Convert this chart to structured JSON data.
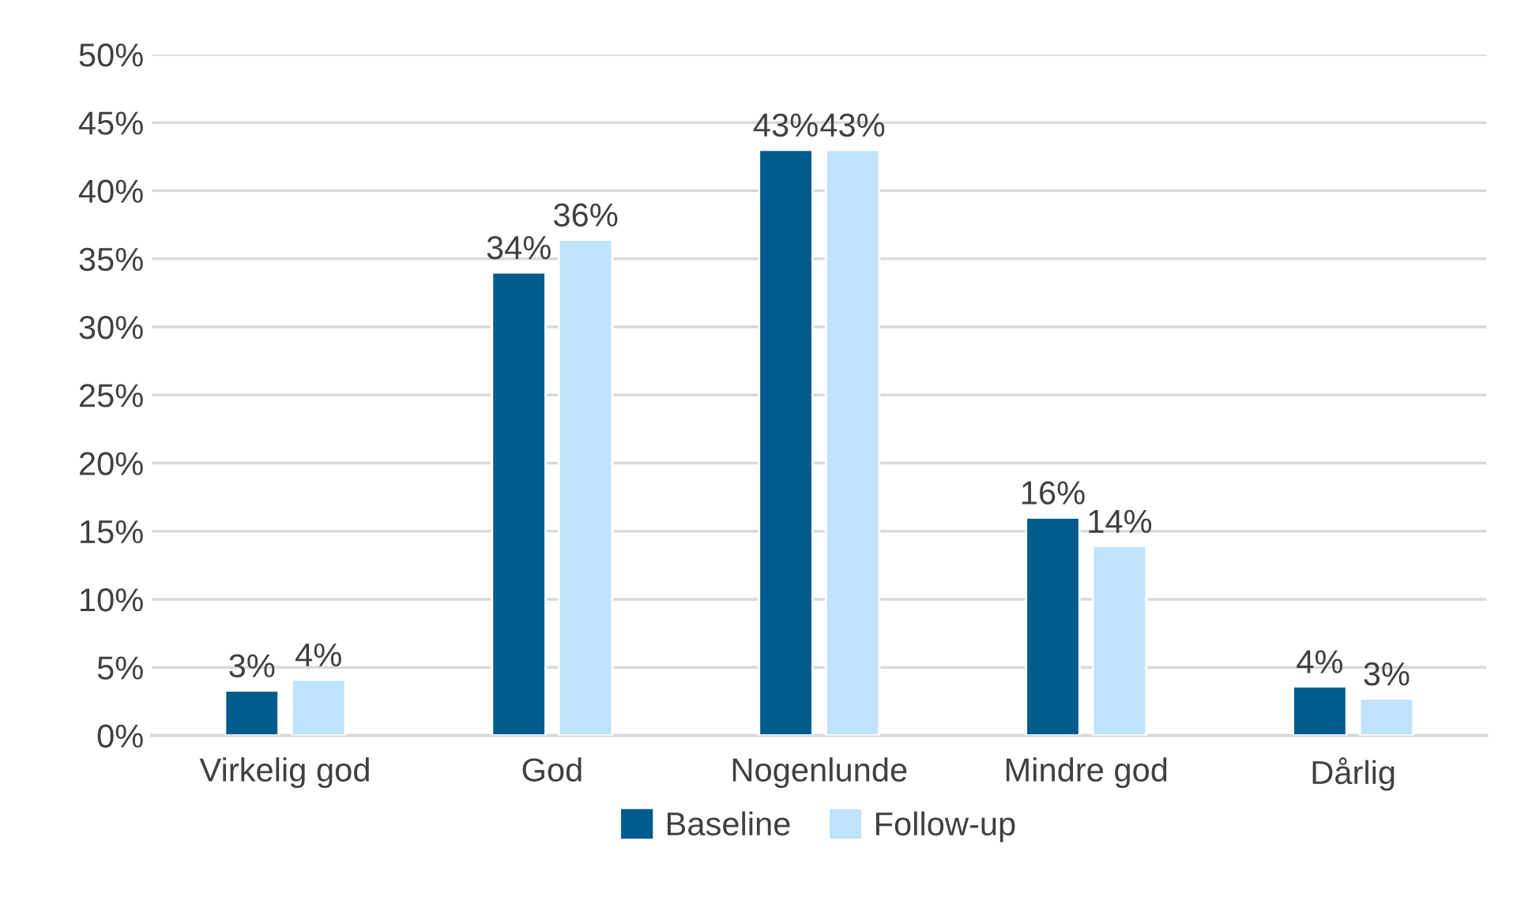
{
  "chart_data": {
    "type": "bar",
    "categories": [
      "Virkelig god",
      "God",
      "Nogenlunde",
      "Mindre god",
      "Dårlig"
    ],
    "series": [
      {
        "name": "Baseline",
        "color": "#005b8f",
        "values": [
          3.3,
          34.0,
          43.0,
          16.0,
          3.6
        ],
        "value_labels": [
          "3%",
          "34%",
          "43%",
          "16%",
          "4%"
        ]
      },
      {
        "name": "Follow-up",
        "color": "#bfe3fb",
        "values": [
          4.1,
          36.4,
          43.0,
          13.9,
          2.7
        ],
        "value_labels": [
          "4%",
          "36%",
          "43%",
          "14%",
          "3%"
        ]
      }
    ],
    "ylim": [
      0,
      50
    ],
    "yticks": [
      {
        "value": 0,
        "label": "0%"
      },
      {
        "value": 5,
        "label": "5%"
      },
      {
        "value": 10,
        "label": "10%"
      },
      {
        "value": 15,
        "label": "15%"
      },
      {
        "value": 20,
        "label": "20%"
      },
      {
        "value": 25,
        "label": "25%"
      },
      {
        "value": 30,
        "label": "30%"
      },
      {
        "value": 35,
        "label": "35%"
      },
      {
        "value": 40,
        "label": "40%"
      },
      {
        "value": 45,
        "label": "45%"
      },
      {
        "value": 50,
        "label": "50%"
      }
    ],
    "grid": "y",
    "legend": "bottom"
  }
}
